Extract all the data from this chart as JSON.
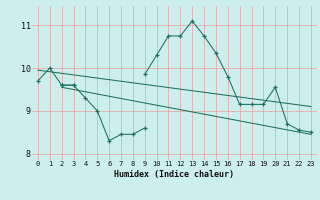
{
  "x": [
    0,
    1,
    2,
    3,
    4,
    5,
    6,
    7,
    8,
    9,
    10,
    11,
    12,
    13,
    14,
    15,
    16,
    17,
    18,
    19,
    20,
    21,
    22,
    23
  ],
  "line1": [
    9.7,
    10.0,
    9.6,
    9.6,
    null,
    null,
    null,
    null,
    null,
    9.85,
    10.3,
    10.75,
    10.75,
    11.1,
    10.75,
    10.35,
    9.8,
    9.15,
    9.15,
    9.15,
    9.55,
    8.7,
    8.55,
    8.5
  ],
  "line2": [
    null,
    null,
    9.6,
    9.6,
    9.3,
    9.0,
    8.3,
    8.45,
    8.45,
    8.6,
    null,
    null,
    null,
    null,
    null,
    null,
    null,
    null,
    null,
    null,
    null,
    null,
    null,
    null
  ],
  "trend1_x": [
    0,
    23
  ],
  "trend1_y": [
    9.95,
    9.1
  ],
  "trend2_x": [
    2,
    23
  ],
  "trend2_y": [
    9.55,
    8.45
  ],
  "xlabel": "Humidex (Indice chaleur)",
  "xlim": [
    -0.5,
    23.5
  ],
  "ylim": [
    7.85,
    11.45
  ],
  "yticks": [
    8,
    9,
    10,
    11
  ],
  "xticks": [
    0,
    1,
    2,
    3,
    4,
    5,
    6,
    7,
    8,
    9,
    10,
    11,
    12,
    13,
    14,
    15,
    16,
    17,
    18,
    19,
    20,
    21,
    22,
    23
  ],
  "bg_color": "#cceeed",
  "grid_color": "#e8a0a0",
  "line_color": "#1e7060",
  "font_color": "#111111"
}
